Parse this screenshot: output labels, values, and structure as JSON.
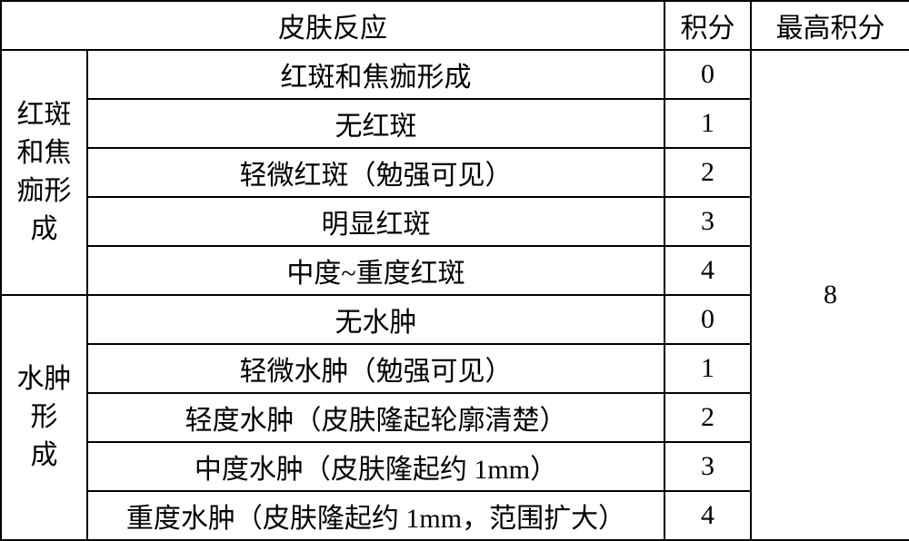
{
  "header": {
    "col1": "皮肤反应",
    "col2": "积分",
    "col3": "最高积分"
  },
  "groups": {
    "erythema": {
      "label_lines": [
        "红斑",
        "和焦",
        "痂形",
        "成"
      ],
      "rows": [
        {
          "desc": "红斑和焦痂形成",
          "score": "0"
        },
        {
          "desc": "无红斑",
          "score": "1"
        },
        {
          "desc": "轻微红斑（勉强可见）",
          "score": "2"
        },
        {
          "desc": "明显红斑",
          "score": "3"
        },
        {
          "desc": "中度~重度红斑",
          "score": "4"
        }
      ]
    },
    "edema": {
      "label_lines": [
        "水肿",
        "形",
        "成"
      ],
      "rows": [
        {
          "desc": "无水肿",
          "score": "0"
        },
        {
          "desc": "轻微水肿（勉强可见）",
          "score": "1"
        },
        {
          "desc": "轻度水肿（皮肤隆起轮廓清楚）",
          "score": "2"
        },
        {
          "desc": "中度水肿（皮肤隆起约 1mm）",
          "score": "3"
        },
        {
          "desc": "重度水肿（皮肤隆起约 1mm，范围扩大）",
          "score": "4"
        }
      ]
    }
  },
  "max_score": "8",
  "style": {
    "border_color": "#000000",
    "background_color": "#ffffff",
    "text_color": "#000000",
    "font_family": "SimSun",
    "cell_fontsize": 30,
    "border_width": 2,
    "col_widths": {
      "group": 95,
      "desc": 635,
      "score": 95,
      "maxscore": 175
    }
  }
}
